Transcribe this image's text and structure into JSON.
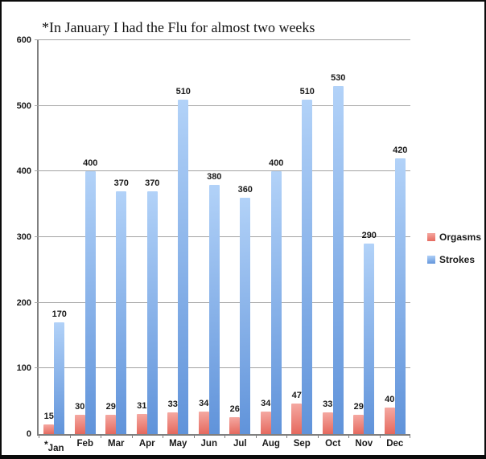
{
  "chart_data": {
    "type": "bar",
    "title": "*In January I had the Flu for almost two weeks",
    "categories": [
      "*Jan",
      "Feb",
      "Mar",
      "Apr",
      "May",
      "Jun",
      "Jul",
      "Aug",
      "Sep",
      "Oct",
      "Nov",
      "Dec"
    ],
    "series": [
      {
        "name": "Orgasms",
        "values": [
          15,
          30,
          29,
          31,
          33,
          34,
          26,
          34,
          47,
          33,
          29,
          40
        ],
        "color_top": "#F5A9A2",
        "color_bottom": "#E5685D"
      },
      {
        "name": "Strokes",
        "values": [
          170,
          400,
          370,
          370,
          510,
          380,
          360,
          400,
          510,
          530,
          290,
          420
        ],
        "color_top": "#B2D2F8",
        "color_bottom": "#6093DA"
      }
    ],
    "ylim": [
      0,
      600
    ],
    "yticks": [
      0,
      100,
      200,
      300,
      400,
      500,
      600
    ],
    "grid": true,
    "legend_position": "right",
    "annotation_note": "*In January I had the Flu for almost two weeks",
    "colors": {
      "gridline": "#a3a3a3",
      "axis": "#7f7f7f",
      "text": "#1a1a1a",
      "background": "#ffffff",
      "frame_border": "#0b0b0b"
    }
  }
}
